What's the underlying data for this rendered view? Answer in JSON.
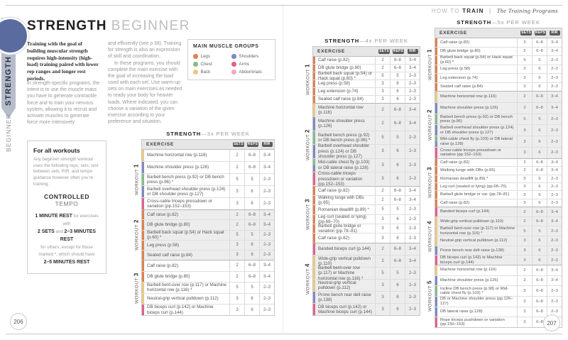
{
  "header": {
    "section_light": "HOW TO",
    "section_bold": "TRAIN",
    "separator": "|",
    "subsection": "The Training Programs"
  },
  "sidebar": {
    "tab_strength": "STRENGTH",
    "tab_beginner": "BEGINNER"
  },
  "page_left": {
    "page_number": "206",
    "title": "STRENGTH",
    "subtitle": "BEGINNER",
    "lead": "Training with the goal of building muscular strength requires high-intensity (high-load) training paired with lower rep ranges and longer rest periods.",
    "col1_p1": "In strength-specific programs, the intent is to use the muscle mass you have to generate contractile force and to train your nervous system, allowing it to recruit and activate muscles to generate force more intensively",
    "col2_p1": "and efficiently (see p.38). Training for strength is also an expression of skill and coordination.",
    "col2_p2": "In these programs, you should complete the main exercise with the goal of increasing the load used with each set. Use warm-up sets on main exercises as needed to ready your body for heavier loads. Where indicated, you can choose a variation of the given exercise according to your preference and situation."
  },
  "page_right": {
    "page_number": "207"
  },
  "legend": {
    "title": "MAIN MUSCLE GROUPS",
    "items": [
      {
        "label": "Legs",
        "muscle": "legs"
      },
      {
        "label": "Chest",
        "muscle": "chest"
      },
      {
        "label": "Back",
        "muscle": "back"
      },
      {
        "label": "Shoulders",
        "muscle": "shoulders"
      },
      {
        "label": "Arms",
        "muscle": "arms"
      },
      {
        "label": "Abdominals",
        "muscle": "abdominals"
      }
    ]
  },
  "muscle_colors": {
    "legs": "#df8150",
    "chest": "#85bb8e",
    "back": "#eac983",
    "shoulders": "#8089c2",
    "arms": "#e2618f",
    "abdominals": "#f2abb4"
  },
  "note_box": {
    "title": "For all workouts",
    "body": "Any beginner strength workout uses the following reps, sets, rest between sets, RIR, and tempo guidance however often you're training.",
    "tempo": "**CONTROLLED** TEMPO",
    "rest_lines": [
      "**1 MINUTE REST** for exercises with",
      "**2 SETS** and **2–3 MINUTES REST**",
      "for others, except for those",
      "marked *, which should have",
      "**2–5 MINUTES REST**"
    ]
  },
  "table_headers": {
    "exercise": "EXERCISE",
    "cols": [
      "SETS",
      "REPS",
      "RIR"
    ]
  },
  "workout_label": "WORKOUT",
  "tables": [
    {
      "id": "table-3x",
      "title_strong": "STRENGTH",
      "title_rest": "—3x PER WEEK",
      "workouts": [
        {
          "num": "1",
          "rows": [
            {
              "exercise": "Machine horizontal row (p.116)",
              "muscle": "back",
              "sets": "2",
              "reps": "6–8",
              "rir": "3–4"
            },
            {
              "exercise": "Machine shoulder press (p.126)",
              "muscle": "shoulders",
              "sets": "2",
              "reps": "6–8",
              "rir": "3–4"
            },
            {
              "exercise": "Barbell bench press (p.92) or DB bench press (p.96) *",
              "muscle": "chest",
              "sets": "5",
              "reps": "5",
              "rir": "2–3"
            },
            {
              "exercise": "Barbell overhead shoulder press (p.124) or DB shoulder press (p.127)",
              "muscle": "shoulders",
              "sets": "3",
              "reps": "6",
              "rir": "2–3"
            },
            {
              "exercise": "Cross-cable triceps pressdown or variation (pp.152–153)",
              "muscle": "arms",
              "sets": "3",
              "reps": "6",
              "rir": "2–3"
            }
          ]
        },
        {
          "num": "2",
          "rows": [
            {
              "exercise": "Calf raise (p.82)",
              "muscle": "legs",
              "sets": "2",
              "reps": "6–8",
              "rir": "3–4"
            },
            {
              "exercise": "DB glute bridge (p.80)",
              "muscle": "legs",
              "sets": "2",
              "reps": "6–8",
              "rir": "3–4"
            },
            {
              "exercise": "Barbell back squat (p.54) or Hack squat (p.60) *",
              "muscle": "legs",
              "sets": "5",
              "reps": "5",
              "rir": "2–3"
            },
            {
              "exercise": "Leg press (p.58)",
              "muscle": "legs",
              "sets": "3",
              "reps": "6",
              "rir": "2–3"
            },
            {
              "exercise": "Seated calf raise (p.84)",
              "muscle": "legs",
              "sets": "3",
              "reps": "6",
              "rir": "2–3"
            }
          ]
        },
        {
          "num": "3",
          "rows": [
            {
              "exercise": "Calf raise (p.82)",
              "muscle": "legs",
              "sets": "2",
              "reps": "6–8",
              "rir": "3–4"
            },
            {
              "exercise": "DB glute bridge (p.80)",
              "muscle": "legs",
              "sets": "2",
              "reps": "6–8",
              "rir": "3–4"
            },
            {
              "exercise": "Barbell bent-over row (p.117) or Machine horizontal row (p.116) *",
              "muscle": "back",
              "sets": "5",
              "reps": "5",
              "rir": "2–3"
            },
            {
              "exercise": "Neutral-grip vertical pulldown (p.112)",
              "muscle": "back",
              "sets": "3",
              "reps": "6",
              "rir": "2–3"
            },
            {
              "exercise": "DB biceps curl (p.142) or Machine biceps curl (p.144)",
              "muscle": "arms",
              "sets": "3",
              "reps": "6",
              "rir": "2–3"
            }
          ]
        }
      ]
    },
    {
      "id": "table-4x",
      "title_strong": "STRENGTH",
      "title_rest": "—4x PER WEEK",
      "workouts": [
        {
          "num": "1",
          "rows": [
            {
              "exercise": "Calf raise (p.82)",
              "muscle": "legs",
              "sets": "2",
              "reps": "6–8",
              "rir": "3–4"
            },
            {
              "exercise": "DB glute bridge (p.80)",
              "muscle": "legs",
              "sets": "2",
              "reps": "6–8",
              "rir": "3–4"
            },
            {
              "exercise": "Barbell back squat (p.54) or Hack squat (p.60) *",
              "muscle": "legs",
              "sets": "5",
              "reps": "5",
              "rir": "2–3"
            },
            {
              "exercise": "Leg press (p.58)",
              "muscle": "legs",
              "sets": "3",
              "reps": "6",
              "rir": "2–3"
            },
            {
              "exercise": "Leg extension (p.74)",
              "muscle": "legs",
              "sets": "3",
              "reps": "6",
              "rir": "2–3"
            },
            {
              "exercise": "Seated calf raise (p.84)",
              "muscle": "legs",
              "sets": "3",
              "reps": "6",
              "rir": "2–3"
            }
          ]
        },
        {
          "num": "2",
          "rows": [
            {
              "exercise": "Machine horizontal row (p.116)",
              "muscle": "back",
              "sets": "2",
              "reps": "6–8",
              "rir": "3–4"
            },
            {
              "exercise": "Machine shoulder press (p.126)",
              "muscle": "shoulders",
              "sets": "2",
              "reps": "6–8",
              "rir": "3–4"
            },
            {
              "exercise": "Barbell bench press (p.92) or DB bench press (p.96) *",
              "muscle": "chest",
              "sets": "5",
              "reps": "5",
              "rir": "2–3"
            },
            {
              "exercise": "Barbell overhead shoulder press (p.124) or DB shoulder press (p.127)",
              "muscle": "shoulders",
              "sets": "3",
              "reps": "6",
              "rir": "2–3"
            },
            {
              "exercise": "Mid-cable chest fly (p.103) or DB lateral raise (p.128)",
              "muscle": [
                "chest",
                "shoulders"
              ],
              "sets": "3",
              "reps": "6",
              "rir": "2–3"
            },
            {
              "exercise": "Cross-cable triceps pressdown or variation (pp.152–153)",
              "muscle": "arms",
              "sets": "3",
              "reps": "6",
              "rir": "2–3"
            }
          ]
        },
        {
          "num": "3",
          "rows": [
            {
              "exercise": "Calf raise (p.82)",
              "muscle": "legs",
              "sets": "2",
              "reps": "6–8",
              "rir": "3–4"
            },
            {
              "exercise": "Walking lunge with DBs (p.65)",
              "muscle": "legs",
              "sets": "2",
              "reps": "6–8",
              "rir": "3–4"
            },
            {
              "exercise": "Romanian deadlift (p.89) *",
              "muscle": "legs",
              "sets": "5",
              "reps": "5",
              "rir": "2–3"
            },
            {
              "exercise": "Leg curl (seated or lying) (pp.68–70)",
              "muscle": "legs",
              "sets": "3",
              "reps": "6",
              "rir": "2–3"
            },
            {
              "exercise": "Barbell glute bridge or variation (pp.78–81)",
              "muscle": "legs",
              "sets": "3",
              "reps": "6",
              "rir": "2–3"
            },
            {
              "exercise": "Calf raise (p.82)",
              "muscle": "legs",
              "sets": "3",
              "reps": "6",
              "rir": "2–3"
            }
          ]
        },
        {
          "num": "4",
          "rows": [
            {
              "exercise": "Banded biceps curl (p.144)",
              "muscle": "arms",
              "sets": "2",
              "reps": "6–8",
              "rir": "3–4"
            },
            {
              "exercise": "Wide-grip vertical pulldown (p.110)",
              "muscle": "back",
              "sets": "2",
              "reps": "6–8",
              "rir": "3–4"
            },
            {
              "exercise": "Barbell bent-over row (p.117) or Machine horizontal row (p.116) *",
              "muscle": "back",
              "sets": "5",
              "reps": "5",
              "rir": "2–3"
            },
            {
              "exercise": "Neutral-grip vertical pulldown (p.112)",
              "muscle": "back",
              "sets": "3",
              "reps": "6",
              "rir": "2–3"
            },
            {
              "exercise": "Prone bench rear delt raise (p.138)",
              "muscle": "shoulders",
              "sets": "3",
              "reps": "6",
              "rir": "2–3"
            },
            {
              "exercise": "DB biceps curl (p.142) or Machine biceps curl (p.144)",
              "muscle": "arms",
              "sets": "3",
              "reps": "6",
              "rir": "2–3"
            }
          ]
        }
      ]
    },
    {
      "id": "table-5x",
      "title_strong": "STRENGTH",
      "title_rest": "—5x PER WEEK",
      "workouts": [
        {
          "num": "1",
          "rows": [
            {
              "exercise": "Calf raise (p.82)",
              "muscle": "legs",
              "sets": "2",
              "reps": "6–8",
              "rir": "3–4"
            },
            {
              "exercise": "DB glute bridge (p.80)",
              "muscle": "legs",
              "sets": "2",
              "reps": "6–8",
              "rir": "3–4"
            },
            {
              "exercise": "Barbell back squat (p.54) or Hack squat (p.60) *",
              "muscle": "legs",
              "sets": "5",
              "reps": "5",
              "rir": "2–3"
            },
            {
              "exercise": "Leg press (p.58)",
              "muscle": "legs",
              "sets": "3",
              "reps": "6",
              "rir": "2–3"
            },
            {
              "exercise": "Leg extension (p.74)",
              "muscle": "legs",
              "sets": "3",
              "reps": "6",
              "rir": "2–3"
            },
            {
              "exercise": "Seated calf raise (p.84)",
              "muscle": "legs",
              "sets": "3",
              "reps": "6",
              "rir": "2–3"
            }
          ]
        },
        {
          "num": "2",
          "rows": [
            {
              "exercise": "Machine horizontal row (p.116)",
              "muscle": "back",
              "sets": "2",
              "reps": "6–8",
              "rir": "3–4"
            },
            {
              "exercise": "Machine shoulder press (p.126)",
              "muscle": "shoulders",
              "sets": "2",
              "reps": "6–8",
              "rir": "3–4"
            },
            {
              "exercise": "Barbell bench press (p.92) or DB bench press (p.96)",
              "muscle": "chest",
              "sets": "5",
              "reps": "5",
              "rir": "2–3"
            },
            {
              "exercise": "Barbell overhead shoulder press (p.124) or DB shoulder press (p.127)",
              "muscle": "shoulders",
              "sets": "3",
              "reps": "6",
              "rir": "2–3"
            },
            {
              "exercise": "Mid-cable chest fly (p.103) or DB lateral raise (p.128)",
              "muscle": [
                "chest",
                "shoulders"
              ],
              "sets": "3",
              "reps": "6",
              "rir": "2–3"
            },
            {
              "exercise": "Cross-cable triceps pressdown or variation (pp.152–153)",
              "muscle": "arms",
              "sets": "3",
              "reps": "6",
              "rir": "2–3"
            }
          ]
        },
        {
          "num": "3",
          "rows": [
            {
              "exercise": "Calf raise (p.82)",
              "muscle": "legs",
              "sets": "2",
              "reps": "6–8",
              "rir": "3–4"
            },
            {
              "exercise": "Walking lunge with DBs (p.65)",
              "muscle": "legs",
              "sets": "2",
              "reps": "6–8",
              "rir": "3–4"
            },
            {
              "exercise": "Romanian deadlift (p.89) *",
              "muscle": "legs",
              "sets": "5",
              "reps": "5",
              "rir": "2–3"
            },
            {
              "exercise": "Leg curl (seated or lying) (pp.68–70)",
              "muscle": "legs",
              "sets": "3",
              "reps": "6",
              "rir": "2–3"
            },
            {
              "exercise": "Barbell glute bridge or var. (pp.78–81)",
              "muscle": "legs",
              "sets": "3",
              "reps": "6",
              "rir": "2–3"
            },
            {
              "exercise": "Calf raise (p.82)",
              "muscle": "legs",
              "sets": "3",
              "reps": "6",
              "rir": "2–3"
            }
          ]
        },
        {
          "num": "4",
          "rows": [
            {
              "exercise": "Banded biceps curl (p.144)",
              "muscle": "arms",
              "sets": "2",
              "reps": "6–8",
              "rir": "3–4"
            },
            {
              "exercise": "Wide-grip vertical pulldown (p.110)",
              "muscle": "back",
              "sets": "2",
              "reps": "6–8",
              "rir": "3–4"
            },
            {
              "exercise": "Barbell bent-over row (p.117) or Machine horizontal row (p.116) *",
              "muscle": "back",
              "sets": "5",
              "reps": "5",
              "rir": "2–3"
            },
            {
              "exercise": "Neutral-grip vertical pulldown (p.112)",
              "muscle": "back",
              "sets": "3",
              "reps": "6",
              "rir": "2–3"
            },
            {
              "exercise": "Prone bench rear delt raise (p.138)",
              "muscle": "shoulders",
              "sets": "3",
              "reps": "6",
              "rir": "2–3"
            },
            {
              "exercise": "DB biceps curl (p.142) or Machine biceps curl (p.144)",
              "muscle": "arms",
              "sets": "3",
              "reps": "6",
              "rir": "2–3"
            }
          ]
        },
        {
          "num": "5",
          "rows": [
            {
              "exercise": "Machine horizontal row (p.116)",
              "muscle": "back",
              "sets": "2",
              "reps": "6–8",
              "rir": "3–4"
            },
            {
              "exercise": "Machine shoulder press (p.126)",
              "muscle": "shoulders",
              "sets": "2",
              "reps": "6–8",
              "rir": "3–4"
            },
            {
              "exercise": "Incline DB bench press (p.98) or Mid-cable chest fly (p.103) *",
              "muscle": "chest",
              "sets": "3",
              "reps": "6–8",
              "rir": "2–3"
            },
            {
              "exercise": "DB or Machine shoulder press (pp.126–127)",
              "muscle": "shoulders",
              "sets": "3",
              "reps": "6–8",
              "rir": "2–3"
            },
            {
              "exercise": "DB lateral raise (p.128)",
              "muscle": "shoulders",
              "sets": "3",
              "reps": "6–8",
              "rir": "2–3"
            },
            {
              "exercise": "Rope triceps pushdown or variation (pp.150–153)",
              "muscle": "arms",
              "sets": "3",
              "reps": "6–8",
              "rir": "2–3"
            }
          ]
        }
      ]
    }
  ]
}
